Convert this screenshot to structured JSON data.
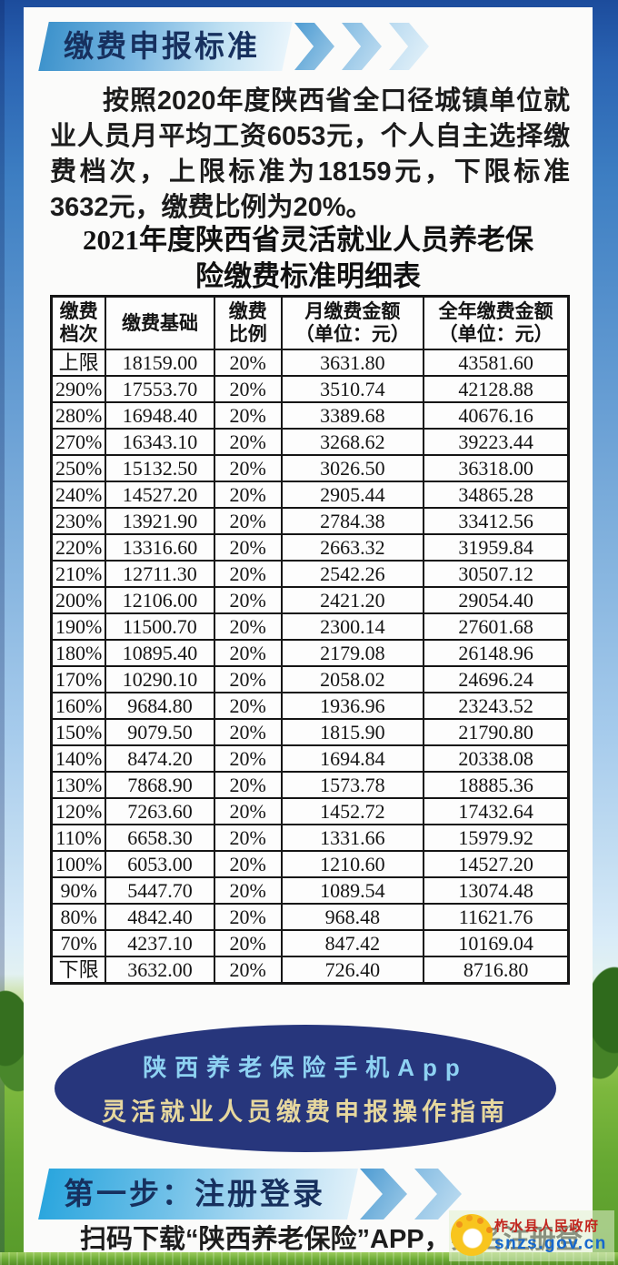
{
  "header_banner": {
    "label": "缴费申报标准"
  },
  "intro": {
    "text": "按照2020年度陕西省全口径城镇单位就业人员月平均工资6053元，个人自主选择缴费档次，上限标准为18159元，下限标准3632元，缴费比例为20%。"
  },
  "table": {
    "title_line1": "2021年度陕西省灵活就业人员养老保",
    "title_line2": "险缴费标准明细表",
    "headers": [
      "缴费\n档次",
      "缴费基础",
      "缴费\n比例",
      "月缴费金额\n（单位：元）",
      "全年缴费金额\n（单位：元）"
    ],
    "rows": [
      [
        "上限",
        "18159.00",
        "20%",
        "3631.80",
        "43581.60"
      ],
      [
        "290%",
        "17553.70",
        "20%",
        "3510.74",
        "42128.88"
      ],
      [
        "280%",
        "16948.40",
        "20%",
        "3389.68",
        "40676.16"
      ],
      [
        "270%",
        "16343.10",
        "20%",
        "3268.62",
        "39223.44"
      ],
      [
        "250%",
        "15132.50",
        "20%",
        "3026.50",
        "36318.00"
      ],
      [
        "240%",
        "14527.20",
        "20%",
        "2905.44",
        "34865.28"
      ],
      [
        "230%",
        "13921.90",
        "20%",
        "2784.38",
        "33412.56"
      ],
      [
        "220%",
        "13316.60",
        "20%",
        "2663.32",
        "31959.84"
      ],
      [
        "210%",
        "12711.30",
        "20%",
        "2542.26",
        "30507.12"
      ],
      [
        "200%",
        "12106.00",
        "20%",
        "2421.20",
        "29054.40"
      ],
      [
        "190%",
        "11500.70",
        "20%",
        "2300.14",
        "27601.68"
      ],
      [
        "180%",
        "10895.40",
        "20%",
        "2179.08",
        "26148.96"
      ],
      [
        "170%",
        "10290.10",
        "20%",
        "2058.02",
        "24696.24"
      ],
      [
        "160%",
        "9684.80",
        "20%",
        "1936.96",
        "23243.52"
      ],
      [
        "150%",
        "9079.50",
        "20%",
        "1815.90",
        "21790.80"
      ],
      [
        "140%",
        "8474.20",
        "20%",
        "1694.84",
        "20338.08"
      ],
      [
        "130%",
        "7868.90",
        "20%",
        "1573.78",
        "18885.36"
      ],
      [
        "120%",
        "7263.60",
        "20%",
        "1452.72",
        "17432.64"
      ],
      [
        "110%",
        "6658.30",
        "20%",
        "1331.66",
        "15979.92"
      ],
      [
        "100%",
        "6053.00",
        "20%",
        "1210.60",
        "14527.20"
      ],
      [
        "90%",
        "5447.70",
        "20%",
        "1089.54",
        "13074.48"
      ],
      [
        "80%",
        "4842.40",
        "20%",
        "968.48",
        "11621.76"
      ],
      [
        "70%",
        "4237.10",
        "20%",
        "847.42",
        "10169.04"
      ],
      [
        "下限",
        "3632.00",
        "20%",
        "726.40",
        "8716.80"
      ]
    ]
  },
  "app_badge": {
    "line1": "陕西养老保险手机App",
    "line2": "灵活就业人员缴费申报操作指南"
  },
  "step_banner": {
    "label": "第一步：注册登录"
  },
  "footer": {
    "text": "扫码下载“陕西养老保险”APP，实名注册登"
  },
  "watermark": {
    "org": "柞水县人民政府",
    "url": "snzs.gov.cn"
  },
  "colors": {
    "banner_text": "#17305e",
    "ellipse_bg": "#27367c",
    "ellipse_line1": "#8ed2f2",
    "ellipse_line2": "#e6d79e",
    "watermark_red": "#c2251e",
    "watermark_blue": "#1668cd",
    "frame_blue": "#1c4c9c",
    "grass_green": "#66a832"
  }
}
